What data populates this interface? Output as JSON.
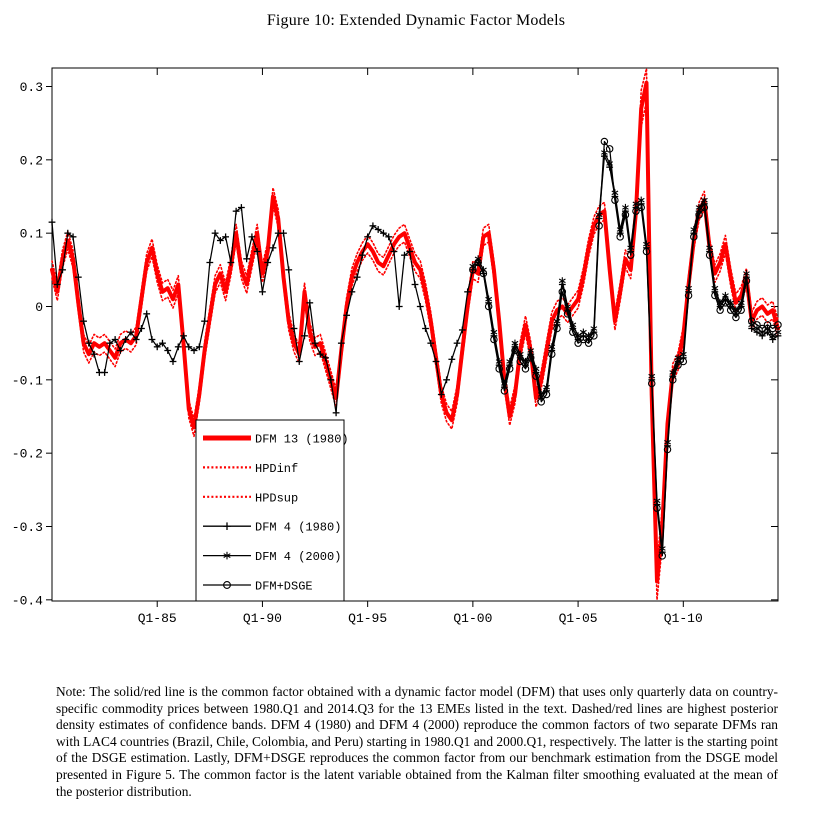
{
  "figure": {
    "title": "Figure 10: Extended Dynamic Factor Models"
  },
  "note": {
    "text": "Note: The solid/red line is the common factor obtained with a dynamic factor model (DFM) that uses only quarterly data on country-specific commodity prices between 1980.Q1 and 2014.Q3 for the 13 EMEs listed in the text. Dashed/red lines are highest posterior density estimates of confidence bands. DFM 4 (1980) and DFM 4 (2000) reproduce the common factors of two separate DFMs ran with LAC4 countries (Brazil, Chile, Colombia, and Peru) starting in 1980.Q1 and 2000.Q1, respectively. The latter is the starting point of the DSGE estimation. Lastly, DFM+DSGE reproduces the common factor from our benchmark estimation from the DSGE model presented in Figure 5. The common factor is the latent variable obtained from the Kalman filter smoothing evaluated at the mean of the posterior distribution."
  },
  "chart_data": {
    "type": "line",
    "x_unit": "quarter",
    "x_start": "1980.Q1",
    "x_end": "2014.Q3",
    "x_tick_labels": [
      "Q1-85",
      "Q1-90",
      "Q1-95",
      "Q1-00",
      "Q1-05",
      "Q1-10"
    ],
    "x_tick_quarter_index": [
      20,
      40,
      60,
      80,
      100,
      120
    ],
    "y_ticks": [
      0.3,
      0.2,
      0.1,
      0,
      -0.1,
      -0.2,
      -0.3,
      -0.4
    ],
    "y_tick_labels": [
      "0.3",
      "0.2",
      "0.1",
      "0",
      "-0.1",
      "-0.2",
      "-0.3",
      "-0.4"
    ],
    "ylim": [
      -0.4,
      0.325
    ],
    "grid": false,
    "legend_position": "bottom-left-inside",
    "colors": {
      "red": "#fe0000",
      "black": "#000000"
    },
    "hpd_halfwidth_base": 0.012,
    "hpd_halfwidth_spike": 0.025,
    "hpd_spike_threshold": 0.2,
    "series": [
      {
        "name": "DFM 13 (1980)",
        "style": "solid-thick",
        "color": "#fe0000",
        "marker": "none",
        "start_quarter_index": 0,
        "values": [
          0.05,
          0.02,
          0.065,
          0.09,
          0.065,
          0.005,
          -0.05,
          -0.065,
          -0.05,
          -0.055,
          -0.05,
          -0.06,
          -0.07,
          -0.05,
          -0.045,
          -0.05,
          -0.04,
          0.01,
          0.06,
          0.08,
          0.045,
          0.02,
          0.025,
          0.01,
          0.03,
          -0.05,
          -0.14,
          -0.165,
          -0.12,
          -0.06,
          -0.015,
          0.03,
          0.045,
          0.02,
          0.055,
          0.1,
          0.05,
          0.03,
          0.065,
          0.1,
          0.045,
          0.075,
          0.15,
          0.12,
          0.04,
          -0.02,
          -0.05,
          -0.065,
          0.02,
          -0.035,
          -0.055,
          -0.05,
          -0.075,
          -0.1,
          -0.125,
          -0.06,
          0.0,
          0.04,
          0.06,
          0.075,
          0.085,
          0.075,
          0.06,
          0.055,
          0.07,
          0.085,
          0.095,
          0.1,
          0.08,
          0.06,
          0.05,
          0.02,
          -0.02,
          -0.07,
          -0.12,
          -0.145,
          -0.155,
          -0.12,
          -0.06,
          0.0,
          0.05,
          0.045,
          0.095,
          0.1,
          0.05,
          -0.02,
          -0.1,
          -0.15,
          -0.12,
          -0.06,
          -0.025,
          -0.06,
          -0.125,
          -0.1,
          -0.06,
          -0.02,
          -0.005,
          0.0,
          -0.01,
          0.0,
          0.01,
          0.04,
          0.08,
          0.11,
          0.125,
          0.13,
          0.05,
          -0.02,
          0.02,
          0.065,
          0.05,
          0.13,
          0.27,
          0.305,
          -0.12,
          -0.375,
          -0.3,
          -0.16,
          -0.09,
          -0.075,
          -0.04,
          0.03,
          0.09,
          0.13,
          0.145,
          0.08,
          0.045,
          0.06,
          0.085,
          0.04,
          0.005,
          0.015,
          0.04,
          -0.02,
          -0.005,
          0.0,
          -0.01,
          -0.005,
          -0.03
        ]
      },
      {
        "name": "HPDinf",
        "style": "dashed",
        "color": "#fe0000",
        "marker": "none",
        "derived_from": "DFM 13 (1980) minus hpd halfwidth"
      },
      {
        "name": "HPDsup",
        "style": "dashed",
        "color": "#fe0000",
        "marker": "none",
        "derived_from": "DFM 13 (1980) plus hpd halfwidth"
      },
      {
        "name": "DFM 4 (1980)",
        "style": "solid-thin",
        "color": "#000000",
        "marker": "plus",
        "start_quarter_index": 0,
        "values": [
          0.115,
          0.03,
          0.05,
          0.1,
          0.095,
          0.04,
          -0.02,
          -0.05,
          -0.065,
          -0.09,
          -0.09,
          -0.05,
          -0.045,
          -0.06,
          -0.045,
          -0.035,
          -0.045,
          -0.03,
          -0.01,
          -0.045,
          -0.055,
          -0.05,
          -0.06,
          -0.075,
          -0.055,
          -0.04,
          -0.055,
          -0.06,
          -0.055,
          -0.02,
          0.06,
          0.1,
          0.09,
          0.095,
          0.06,
          0.13,
          0.135,
          0.065,
          0.095,
          0.075,
          0.02,
          0.06,
          0.08,
          0.1,
          0.1,
          0.05,
          -0.03,
          -0.075,
          -0.04,
          0.005,
          -0.05,
          -0.065,
          -0.07,
          -0.1,
          -0.145,
          -0.05,
          -0.012,
          0.02,
          0.04,
          0.07,
          0.095,
          0.11,
          0.105,
          0.1,
          0.095,
          0.075,
          0.0,
          0.07,
          0.075,
          0.03,
          0.0,
          -0.03,
          -0.05,
          -0.075,
          -0.12,
          -0.1,
          -0.072,
          -0.05,
          -0.032,
          0.02,
          0.05,
          0.06,
          0.045,
          0.005,
          -0.04,
          -0.08,
          -0.11,
          -0.08,
          -0.055,
          -0.07,
          -0.08,
          -0.065,
          -0.09,
          -0.125,
          -0.115,
          -0.06,
          -0.025,
          0.03,
          -0.005,
          -0.03,
          -0.045,
          -0.04,
          -0.045,
          -0.035,
          0.12,
          0.205,
          0.19,
          0.15,
          0.1,
          0.13,
          0.075,
          0.135,
          0.14,
          0.08,
          -0.1,
          -0.27,
          -0.335,
          -0.19,
          -0.095,
          -0.075,
          -0.07,
          0.02,
          0.1,
          0.13,
          0.14,
          0.075,
          0.02,
          0.0,
          0.01,
          0.0,
          -0.01,
          0.0,
          0.04,
          -0.03,
          -0.035,
          -0.04,
          -0.035,
          -0.045,
          -0.04
        ]
      },
      {
        "name": "DFM 4 (2000)",
        "style": "solid-thin",
        "color": "#000000",
        "marker": "star",
        "start_quarter_index": 80,
        "values": [
          0.055,
          0.065,
          0.05,
          0.01,
          -0.035,
          -0.075,
          -0.105,
          -0.075,
          -0.05,
          -0.065,
          -0.075,
          -0.06,
          -0.085,
          -0.12,
          -0.11,
          -0.055,
          -0.02,
          0.035,
          0.0,
          -0.025,
          -0.04,
          -0.035,
          -0.04,
          -0.03,
          0.125,
          0.21,
          0.195,
          0.155,
          0.105,
          0.135,
          0.08,
          0.14,
          0.145,
          0.085,
          -0.095,
          -0.265,
          -0.33,
          -0.185,
          -0.09,
          -0.07,
          -0.065,
          0.025,
          0.105,
          0.135,
          0.145,
          0.08,
          0.025,
          0.005,
          0.015,
          0.005,
          -0.005,
          0.005,
          0.045,
          -0.025,
          -0.03,
          -0.035,
          -0.03,
          -0.04,
          -0.035
        ]
      },
      {
        "name": "DFM+DSGE",
        "style": "solid-thin",
        "color": "#000000",
        "marker": "circle",
        "start_quarter_index": 80,
        "values": [
          0.05,
          0.06,
          0.045,
          0.0,
          -0.045,
          -0.085,
          -0.115,
          -0.085,
          -0.06,
          -0.075,
          -0.085,
          -0.07,
          -0.095,
          -0.13,
          -0.12,
          -0.065,
          -0.03,
          0.02,
          -0.01,
          -0.035,
          -0.05,
          -0.045,
          -0.05,
          -0.04,
          0.11,
          0.225,
          0.215,
          0.145,
          0.095,
          0.125,
          0.07,
          0.13,
          0.135,
          0.075,
          -0.105,
          -0.275,
          -0.34,
          -0.195,
          -0.1,
          -0.08,
          -0.075,
          0.015,
          0.095,
          0.125,
          0.135,
          0.07,
          0.015,
          -0.005,
          0.005,
          -0.005,
          -0.015,
          -0.005,
          0.035,
          -0.02,
          -0.025,
          -0.03,
          -0.025,
          -0.03,
          -0.025
        ]
      }
    ]
  }
}
